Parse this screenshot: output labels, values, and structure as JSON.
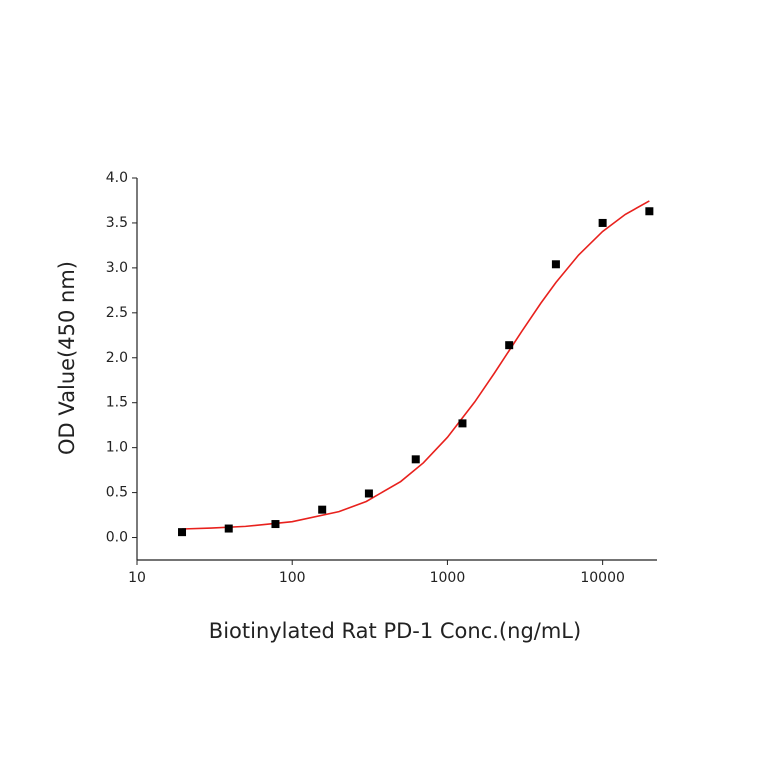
{
  "chart_data": {
    "type": "scatter",
    "x_label": "Biotinylated Rat PD-1 Conc.(ng/mL)",
    "y_label": "OD Value(450 nm)",
    "xscale": "log",
    "xlim": [
      10,
      22400
    ],
    "ylim": [
      -0.25,
      4.0
    ],
    "xticks": [
      10,
      100,
      1000,
      10000
    ],
    "yticks": [
      {
        "value": 0,
        "label": "0.0"
      },
      {
        "value": 0.5,
        "label": "0.5"
      },
      {
        "value": 1,
        "label": "1.0"
      },
      {
        "value": 1.5,
        "label": "1.5"
      },
      {
        "value": 2,
        "label": "2.0"
      },
      {
        "value": 2.5,
        "label": "2.5"
      },
      {
        "value": 3,
        "label": "3.0"
      },
      {
        "value": 3.5,
        "label": "3.5"
      },
      {
        "value": 4,
        "label": "4.0"
      }
    ],
    "series": [
      {
        "type": "scatter",
        "color": "#000000",
        "x": [
          19.5,
          39,
          78,
          156,
          312,
          625,
          1250,
          2500,
          5000,
          10000,
          20000
        ],
        "values": [
          0.06,
          0.1,
          0.15,
          0.31,
          0.49,
          0.87,
          1.27,
          2.14,
          3.04,
          3.5,
          3.63
        ]
      },
      {
        "type": "line",
        "color": "#e8211d",
        "x": [
          19.5,
          30,
          50,
          100,
          200,
          300,
          500,
          700,
          1000,
          1500,
          2000,
          3000,
          4000,
          5000,
          7000,
          10000,
          14000,
          20000
        ],
        "values": [
          0.095,
          0.105,
          0.124,
          0.176,
          0.288,
          0.401,
          0.623,
          0.831,
          1.115,
          1.509,
          1.825,
          2.289,
          2.608,
          2.837,
          3.143,
          3.405,
          3.595,
          3.745
        ]
      }
    ]
  }
}
